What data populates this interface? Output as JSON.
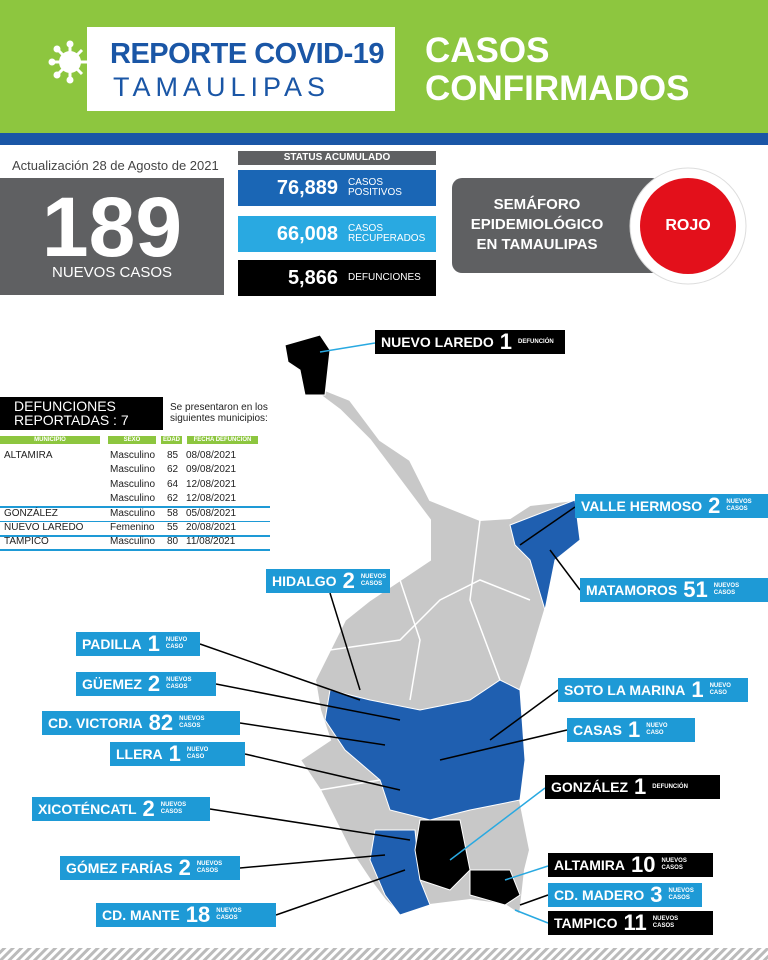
{
  "header": {
    "title": "REPORTE COVID-19",
    "subtitle": "TAMAULIPAS",
    "heading": [
      "CASOS",
      "CONFIRMADOS"
    ]
  },
  "update": "Actualización 28 de Agosto de 2021",
  "new_cases": {
    "value": "189",
    "label": "NUEVOS CASOS"
  },
  "status": {
    "title": "STATUS ACUMULADO",
    "items": [
      {
        "value": "76,889",
        "label": [
          "CASOS",
          "POSITIVOS"
        ],
        "color": "#1a66b5"
      },
      {
        "value": "66,008",
        "label": [
          "CASOS",
          "RECUPERADOS"
        ],
        "color": "#29a9e1"
      },
      {
        "value": "5,866",
        "label": [
          "DEFUNCIONES"
        ],
        "color": "#000000"
      }
    ]
  },
  "semaforo": {
    "label": [
      "SEMÁFORO",
      "EPIDEMIOLÓGICO",
      "EN TAMAULIPAS"
    ],
    "status": "ROJO"
  },
  "deaths": {
    "title": [
      "DEFUNCIONES",
      "REPORTADAS : 7"
    ],
    "note": [
      "Se presentaron en los",
      "siguientes municipios:"
    ],
    "columns": [
      "MUNICIPIO",
      "SEXO",
      "EDAD",
      "FECHA DEFUNCIÓN"
    ],
    "rows": [
      {
        "municipio": "ALTAMIRA",
        "sexo": "Masculino",
        "edad": 85,
        "fecha": "08/08/2021"
      },
      {
        "sexo": "Masculino",
        "edad": 62,
        "fecha": "09/08/2021"
      },
      {
        "sexo": "Masculino",
        "edad": 64,
        "fecha": "12/08/2021"
      },
      {
        "sexo": "Masculino",
        "edad": 62,
        "fecha": "12/08/2021"
      },
      {
        "municipio": "GONZÁLEZ",
        "sexo": "Masculino",
        "edad": 58,
        "fecha": "05/08/2021"
      },
      {
        "municipio": "NUEVO LAREDO",
        "sexo": "Femenino",
        "edad": 55,
        "fecha": "20/08/2021"
      },
      {
        "municipio": "TAMPICO",
        "sexo": "Masculino",
        "edad": 80,
        "fecha": "11/08/2021"
      }
    ]
  },
  "map": {
    "labels": [
      {
        "name": "NUEVO LAREDO",
        "count": "1",
        "note": [
          "DEFUNCIÓN"
        ],
        "color": "#000000"
      },
      {
        "name": "VALLE HERMOSO",
        "count": "2",
        "note": [
          "NUEVOS",
          "CASOS"
        ],
        "color": "#1e9ad6"
      },
      {
        "name": "HIDALGO",
        "count": "2",
        "note": [
          "NUEVOS",
          "CASOS"
        ],
        "color": "#1e9ad6"
      },
      {
        "name": "MATAMOROS",
        "count": "51",
        "note": [
          "NUEVOS",
          "CASOS"
        ],
        "color": "#1e9ad6"
      },
      {
        "name": "PADILLA",
        "count": "1",
        "note": [
          "NUEVO",
          "CASO"
        ],
        "color": "#1e9ad6"
      },
      {
        "name": "GÜEMEZ",
        "count": "2",
        "note": [
          "NUEVOS",
          "CASOS"
        ],
        "color": "#1e9ad6"
      },
      {
        "name": "SOTO LA MARINA",
        "count": "1",
        "note": [
          "NUEVO",
          "CASO"
        ],
        "color": "#1e9ad6"
      },
      {
        "name": "CD. VICTORIA",
        "count": "82",
        "note": [
          "NUEVOS",
          "CASOS"
        ],
        "color": "#1e9ad6"
      },
      {
        "name": "CASAS",
        "count": "1",
        "note": [
          "NUEVO",
          "CASO"
        ],
        "color": "#1e9ad6"
      },
      {
        "name": "LLERA",
        "count": "1",
        "note": [
          "NUEVO",
          "CASO"
        ],
        "color": "#1e9ad6"
      },
      {
        "name": "GONZÁLEZ",
        "count": "1",
        "note": [
          "DEFUNCIÓN"
        ],
        "color": "#000000"
      },
      {
        "name": "XICOTÉNCATL",
        "count": "2",
        "note": [
          "NUEVOS",
          "CASOS"
        ],
        "color": "#1e9ad6"
      },
      {
        "name": "GÓMEZ FARÍAS",
        "count": "2",
        "note": [
          "NUEVOS",
          "CASOS"
        ],
        "color": "#1e9ad6"
      },
      {
        "name": "ALTAMIRA",
        "count": "10",
        "note": [
          "NUEVOS",
          "CASOS"
        ],
        "color": "#000000"
      },
      {
        "name": "CD. MADERO",
        "count": "3",
        "note": [
          "NUEVOS",
          "CASOS"
        ],
        "color": "#1e9ad6"
      },
      {
        "name": "TAMPICO",
        "count": "11",
        "note": [
          "NUEVOS",
          "CASOS"
        ],
        "color": "#000000"
      },
      {
        "name": "CD. MANTE",
        "count": "18",
        "note": [
          "NUEVOS",
          "CASOS"
        ],
        "color": "#1e9ad6"
      }
    ]
  }
}
